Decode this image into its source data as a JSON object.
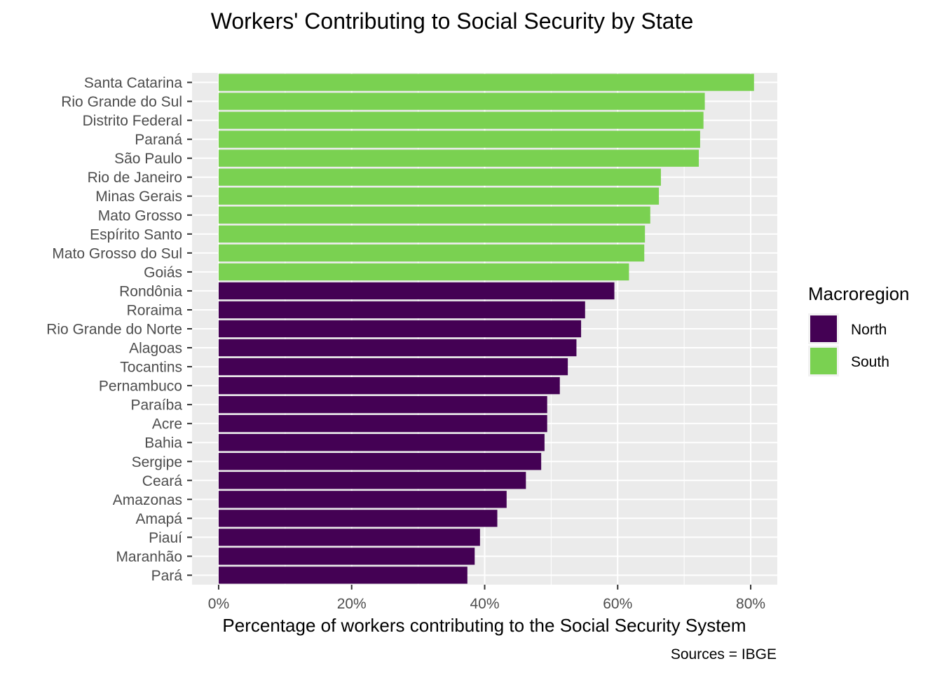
{
  "chart_data": {
    "type": "bar",
    "orientation": "horizontal",
    "title": "Workers' Contributing to Social Security by State",
    "xlabel": "Percentage of workers contributing to the Social Security System",
    "ylabel": "",
    "caption": "Sources = IBGE",
    "xlim": [
      -4,
      84
    ],
    "x_ticks": [
      0,
      20,
      40,
      60,
      80
    ],
    "x_tick_labels": [
      "0%",
      "20%",
      "40%",
      "60%",
      "80%"
    ],
    "grid": true,
    "legend": {
      "title": "Macroregion",
      "placement": "right",
      "entries": [
        {
          "name": "North",
          "color": "#440154"
        },
        {
          "name": "South",
          "color": "#7AD151"
        }
      ]
    },
    "categories": [
      "Santa Catarina",
      "Rio Grande do Sul",
      "Distrito Federal",
      "Paraná",
      "São Paulo",
      "Rio de Janeiro",
      "Minas Gerais",
      "Mato Grosso",
      "Espírito Santo",
      "Mato Grosso do Sul",
      "Goiás",
      "Rondônia",
      "Roraima",
      "Rio Grande do Norte",
      "Alagoas",
      "Tocantins",
      "Pernambuco",
      "Paraíba",
      "Acre",
      "Bahia",
      "Sergipe",
      "Ceará",
      "Amazonas",
      "Amapá",
      "Piauí",
      "Maranhão",
      "Pará"
    ],
    "values": [
      80.5,
      73.1,
      72.9,
      72.4,
      72.2,
      66.5,
      66.2,
      64.9,
      64.1,
      64.0,
      61.7,
      59.5,
      55.1,
      54.5,
      53.8,
      52.5,
      51.3,
      49.4,
      49.4,
      49.0,
      48.5,
      46.2,
      43.3,
      41.9,
      39.3,
      38.5,
      37.4
    ],
    "groups": [
      "South",
      "South",
      "South",
      "South",
      "South",
      "South",
      "South",
      "South",
      "South",
      "South",
      "South",
      "North",
      "North",
      "North",
      "North",
      "North",
      "North",
      "North",
      "North",
      "North",
      "North",
      "North",
      "North",
      "North",
      "North",
      "North",
      "North"
    ]
  }
}
